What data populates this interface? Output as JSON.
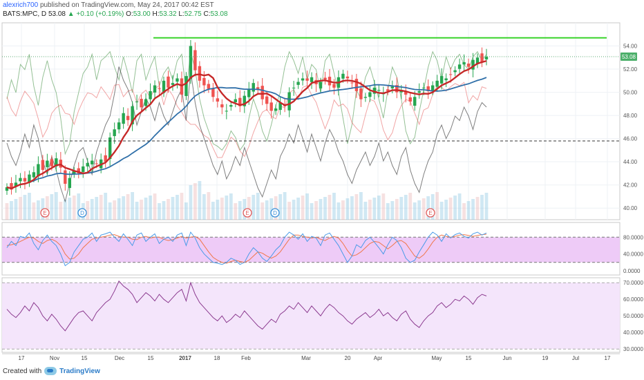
{
  "header": {
    "user": "alexrich700",
    "published": "published on TradingView.com, May 24, 2017 00:42 EST",
    "symbol": "BATS:MPC, D",
    "last": "53.08",
    "change": "▲ +0.10 (+0.19%)",
    "o_label": "O:",
    "o": "53.00",
    "h_label": "H:",
    "h": "53.32",
    "l_label": "L:",
    "l": "52.75",
    "c_label": "C:",
    "c": "53.08"
  },
  "footer": {
    "created": "Created with",
    "brand": "TradingView"
  },
  "colors": {
    "up": "#26a650",
    "down": "#ef5350",
    "ma_fast": "#c62828",
    "ma_slow": "#2f6fa8",
    "hline": "#39d32a",
    "stoch_k": "#4a9be8",
    "stoch_d": "#f0774a",
    "stoch_band": "#eecbf7",
    "rsi": "#8b3a8f",
    "rsi_band": "#f4e5fb"
  },
  "chart_data": [
    {
      "type": "candlestick",
      "title": "BATS:MPC, D",
      "price_axis": {
        "ticks": [
          40.0,
          42.0,
          44.0,
          46.0,
          48.0,
          50.0,
          52.0,
          54.0
        ],
        "range": [
          39.0,
          56.0
        ],
        "last_price_label": "53.08",
        "last_price": 53.08
      },
      "x_ticks": [
        "17",
        "Nov",
        "15",
        "Dec",
        "15",
        "2017",
        "18",
        "Feb",
        "Mar",
        "20",
        "Apr",
        "May",
        "15",
        "Jun",
        "19",
        "Jul",
        "17"
      ],
      "resistance_line": 54.7,
      "dashed_level": 45.8,
      "overlays": [
        "moving average (red)",
        "moving average (blue)",
        "volume",
        "overlay oscillators (green, red, black)"
      ],
      "event_markers": [
        {
          "label": "E",
          "color": "red"
        },
        {
          "label": "D",
          "color": "blue"
        },
        {
          "label": "E",
          "color": "red"
        },
        {
          "label": "D",
          "color": "blue"
        },
        {
          "label": "E",
          "color": "red"
        }
      ],
      "close_series": [
        41.8,
        41.6,
        42.2,
        42.6,
        42.3,
        42.9,
        43.1,
        43.8,
        43.3,
        44.1,
        43.6,
        44.3,
        43.5,
        42.1,
        42.6,
        43.2,
        43.0,
        43.6,
        43.9,
        44.1,
        43.8,
        44.2,
        44.0,
        46.1,
        46.8,
        47.4,
        48.2,
        47.6,
        48.8,
        49.2,
        48.7,
        49.4,
        50.1,
        50.6,
        50.3,
        51.0,
        50.4,
        50.8,
        51.2,
        49.8,
        51.4,
        54.0,
        51.9,
        51.0,
        50.6,
        50.3,
        49.6,
        49.2,
        48.7,
        48.4,
        48.9,
        49.4,
        48.8,
        49.7,
        50.3,
        50.8,
        50.2,
        49.4,
        49.0,
        48.4,
        48.6,
        49.1,
        48.8,
        50.0,
        50.4,
        50.9,
        51.2,
        51.0,
        51.3,
        50.7,
        50.9,
        51.1,
        50.6,
        50.4,
        51.3,
        51.6,
        51.2,
        50.8,
        50.1,
        49.4,
        49.6,
        50.0,
        50.4,
        50.2,
        49.9,
        50.1,
        50.5,
        50.0,
        50.2,
        49.8,
        49.2,
        49.6,
        50.1,
        50.4,
        50.1,
        50.6,
        51.0,
        51.4,
        51.2,
        51.5,
        51.9,
        52.4,
        52.6,
        52.2,
        52.8,
        53.0,
        52.6,
        53.08
      ]
    },
    {
      "type": "line",
      "title": "Stochastic",
      "y_ticks": [
        0.0,
        40.0,
        80.0
      ],
      "y_range": [
        -10.0,
        115.0
      ],
      "band": [
        20.0,
        80.0
      ],
      "series": [
        {
          "values": [
            55,
            70,
            60,
            82,
            78,
            90,
            65,
            50,
            72,
            85,
            70,
            60,
            40,
            12,
            20,
            45,
            60,
            75,
            80,
            90,
            70,
            85,
            88,
            92,
            80,
            70,
            88,
            75,
            60,
            85,
            90,
            70,
            80,
            88,
            65,
            75,
            80,
            70,
            85,
            90,
            60,
            92,
            78,
            55,
            40,
            30,
            20,
            18,
            15,
            20,
            30,
            25,
            15,
            20,
            40,
            55,
            45,
            30,
            22,
            35,
            50,
            60,
            80,
            92,
            85,
            75,
            88,
            70,
            82,
            78,
            60,
            85,
            90,
            75,
            60,
            40,
            20,
            35,
            62,
            55,
            72,
            80,
            68,
            55,
            40,
            62,
            80,
            72,
            55,
            30,
            20,
            25,
            45,
            62,
            80,
            92,
            85,
            70,
            88,
            78,
            86,
            90,
            82,
            78,
            88,
            92,
            85,
            90
          ]
        },
        {
          "values": [
            60,
            62,
            65,
            70,
            75,
            80,
            78,
            70,
            65,
            72,
            75,
            70,
            60,
            40,
            28,
            30,
            40,
            55,
            65,
            75,
            78,
            80,
            82,
            85,
            86,
            82,
            80,
            80,
            75,
            74,
            80,
            82,
            78,
            80,
            80,
            75,
            72,
            74,
            78,
            82,
            78,
            80,
            82,
            75,
            60,
            45,
            32,
            25,
            20,
            18,
            22,
            25,
            22,
            20,
            25,
            35,
            45,
            42,
            35,
            30,
            35,
            45,
            60,
            75,
            85,
            85,
            82,
            80,
            78,
            80,
            75,
            72,
            78,
            82,
            78,
            65,
            48,
            35,
            38,
            45,
            55,
            65,
            70,
            68,
            60,
            52,
            60,
            70,
            72,
            65,
            50,
            35,
            30,
            38,
            52,
            68,
            80,
            85,
            82,
            80,
            82,
            85,
            86,
            84,
            82,
            84,
            86,
            87
          ]
        }
      ]
    },
    {
      "type": "line",
      "title": "RSI",
      "y_ticks": [
        30.0,
        40.0,
        50.0,
        60.0,
        70.0
      ],
      "y_range": [
        28.0,
        73.0
      ],
      "band": [
        30.0,
        70.0
      ],
      "series": [
        {
          "values": [
            54,
            51,
            49,
            52,
            56,
            53,
            58,
            55,
            50,
            47,
            51,
            48,
            44,
            41,
            45,
            49,
            52,
            53,
            50,
            47,
            52,
            55,
            58,
            60,
            65,
            71,
            68,
            66,
            63,
            58,
            61,
            64,
            62,
            59,
            63,
            60,
            58,
            61,
            64,
            66,
            59,
            70,
            63,
            58,
            55,
            52,
            49,
            47,
            50,
            46,
            48,
            51,
            49,
            53,
            50,
            47,
            44,
            42,
            45,
            48,
            46,
            51,
            53,
            56,
            54,
            58,
            55,
            52,
            56,
            53,
            50,
            54,
            57,
            55,
            52,
            50,
            47,
            45,
            48,
            50,
            52,
            49,
            51,
            54,
            50,
            52,
            49,
            47,
            51,
            53,
            48,
            45,
            43,
            47,
            50,
            52,
            56,
            58,
            55,
            57,
            60,
            59,
            62,
            60,
            57,
            61,
            63,
            62
          ]
        }
      ]
    }
  ]
}
